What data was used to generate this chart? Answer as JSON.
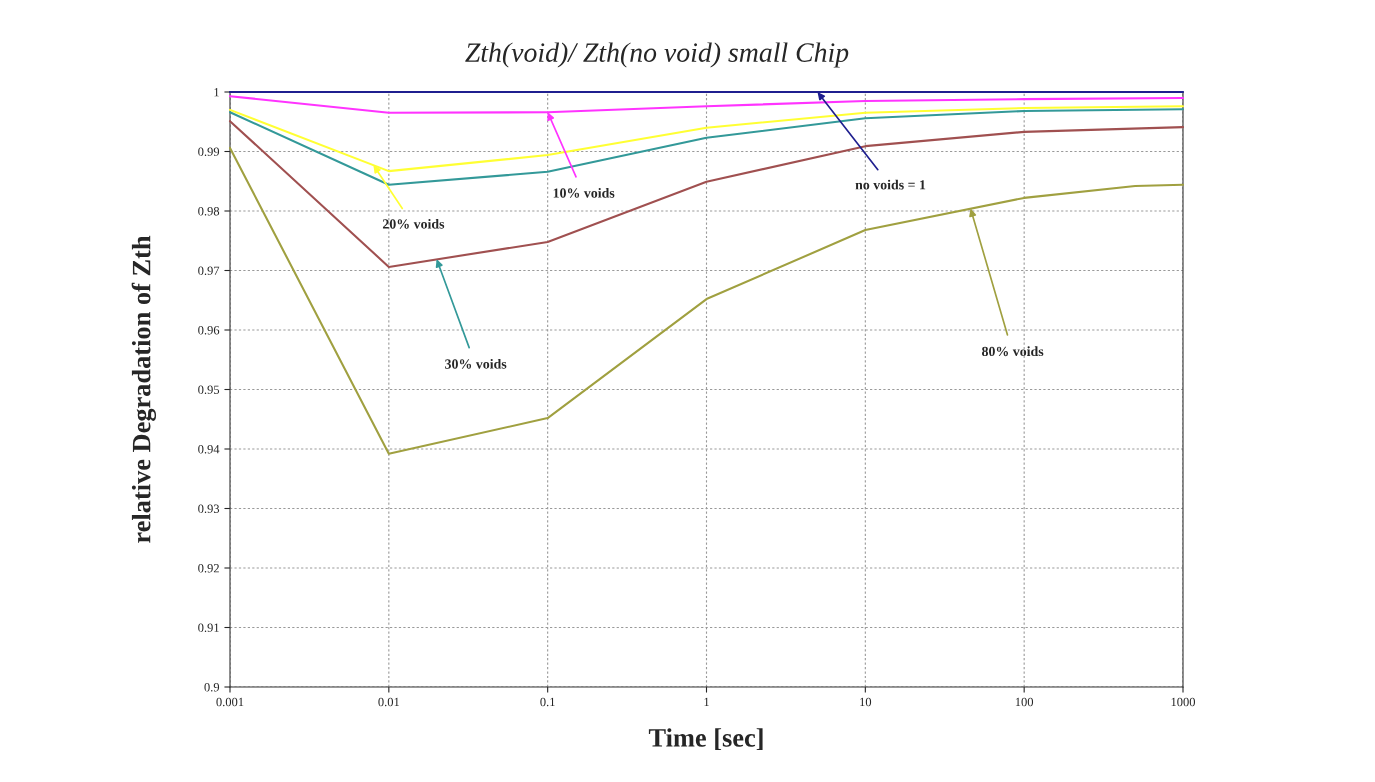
{
  "chart_data": {
    "type": "line",
    "title": "Zth(void)/ Zth(no void) small Chip",
    "xlabel": "Time [sec]",
    "ylabel": "relative Degradation of Zth",
    "x": [
      0.001,
      0.01,
      0.1,
      1,
      10,
      100,
      1000
    ],
    "series": [
      {
        "color": "#1f1f8f",
        "values": [
          1,
          1,
          1,
          1,
          1,
          1,
          1
        ]
      },
      {
        "color": "#ff33ff",
        "values": [
          0.9993,
          0.9965,
          0.9966,
          0.9976,
          0.9985,
          0.9988,
          0.999
        ]
      },
      {
        "color": "#ffff33",
        "values": [
          0.997,
          0.9867,
          0.9894,
          0.994,
          0.9965,
          0.9973,
          0.9976
        ]
      },
      {
        "color": "#339999",
        "values": [
          0.9966,
          0.9844,
          0.9866,
          0.9923,
          0.9956,
          0.9968,
          0.9971
        ]
      },
      {
        "color": "#a05050",
        "values": [
          0.9951,
          0.9706,
          0.9748,
          0.9849,
          0.9909,
          0.9933,
          0.9941
        ]
      },
      {
        "color": "#a0a040",
        "x": [
          0.001,
          0.01,
          0.1,
          1,
          10,
          100,
          500,
          1000
        ],
        "values": [
          0.9906,
          0.9392,
          0.9452,
          0.9652,
          0.9768,
          0.9822,
          0.9842,
          0.9844
        ]
      }
    ],
    "annotations": [
      {
        "text": "20% voids",
        "x": 0.008,
        "y": 0.9877
      },
      {
        "text": "10% voids",
        "x": 0.1,
        "y": 0.9966
      },
      {
        "text": "30% voids",
        "x": 0.02,
        "y": 0.9719
      },
      {
        "text": "no voids = 1",
        "x": 5,
        "y": 1
      },
      {
        "text": "80% voids",
        "x": 46,
        "y": 0.9804
      }
    ],
    "log": "x",
    "xlim": [
      0.001,
      1000
    ],
    "xticks": [
      0.001,
      0.01,
      0.1,
      1,
      10,
      100,
      1000
    ],
    "ylim": [
      0.9,
      1
    ],
    "yticks": [
      0.9,
      0.91,
      0.92,
      0.93,
      0.94,
      0.95,
      0.96,
      0.97,
      0.98,
      0.99,
      1
    ],
    "grid": true
  }
}
